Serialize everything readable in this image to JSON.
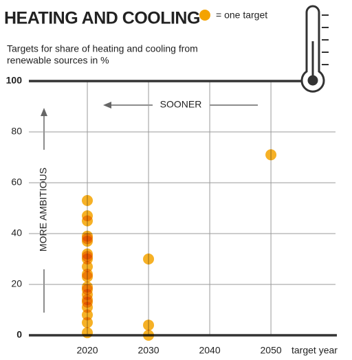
{
  "chart_data": {
    "type": "scatter",
    "title": "HEATING AND COOLING",
    "legend_label": "= one target",
    "subtitle": [
      "Targets for share of heating and cooling from",
      "renewable sources in %"
    ],
    "annotations": [
      "SOONER",
      "MORE AMBITIOUS"
    ],
    "x_label": "target year",
    "color": "#f4a300",
    "x": [
      2020,
      2020,
      2020,
      2020,
      2020,
      2020,
      2020,
      2020,
      2020,
      2020,
      2020,
      2020,
      2020,
      2020,
      2020,
      2020,
      2020,
      2020,
      2020,
      2020,
      2020,
      2030,
      2030,
      2030,
      2050
    ],
    "values": [
      1,
      5,
      8,
      11,
      13,
      14,
      16,
      18,
      19,
      23,
      24,
      27,
      30,
      31,
      32,
      37,
      38,
      39,
      45,
      47,
      53,
      30,
      4,
      0,
      71
    ],
    "xlim": [
      2010,
      2061
    ],
    "xticks": [
      2020,
      2030,
      2040,
      2050
    ],
    "ylim": [
      0,
      100
    ],
    "yticks": [
      0,
      20,
      40,
      60,
      80,
      100
    ],
    "grid": true
  }
}
